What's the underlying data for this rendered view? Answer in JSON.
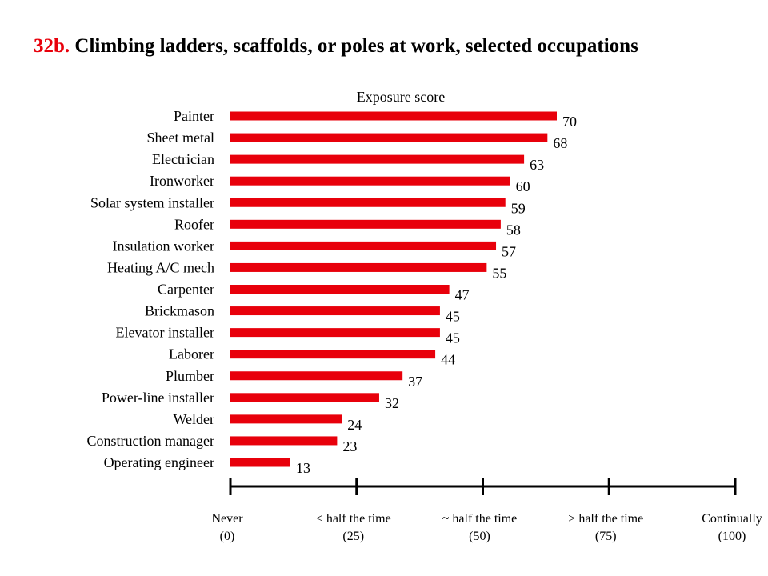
{
  "title": {
    "number": "32b.",
    "text": "Climbing ladders, scaffolds, or poles at work, selected occupations"
  },
  "colors": {
    "bar": "#e8000b",
    "title_number": "#e8000b",
    "axis": "#000000"
  },
  "chart_data": {
    "type": "bar",
    "orientation": "horizontal",
    "title": "32b. Climbing ladders, scaffolds, or poles at work, selected occupations",
    "xlabel": "Exposure score",
    "ylabel": "",
    "xlim": [
      0,
      100
    ],
    "categories": [
      "Painter",
      "Sheet metal",
      "Electrician",
      "Ironworker",
      "Solar system installer",
      "Roofer",
      "Insulation worker",
      "Heating A/C mech",
      "Carpenter",
      "Brickmason",
      "Elevator installer",
      "Laborer",
      "Plumber",
      "Power-line installer",
      "Welder",
      "Construction manager",
      "Operating engineer"
    ],
    "values": [
      70,
      68,
      63,
      60,
      59,
      58,
      57,
      55,
      47,
      45,
      45,
      44,
      37,
      32,
      24,
      23,
      13
    ],
    "x_ticks": [
      {
        "value": 0,
        "label": "Never",
        "sublabel": "(0)"
      },
      {
        "value": 25,
        "label": "< half the time",
        "sublabel": "(25)"
      },
      {
        "value": 50,
        "label": "~ half the time",
        "sublabel": "(50)"
      },
      {
        "value": 75,
        "label": "> half the time",
        "sublabel": "(75)"
      },
      {
        "value": 100,
        "label": "Continually",
        "sublabel": "(100)"
      }
    ],
    "grid": false,
    "legend": "none"
  }
}
